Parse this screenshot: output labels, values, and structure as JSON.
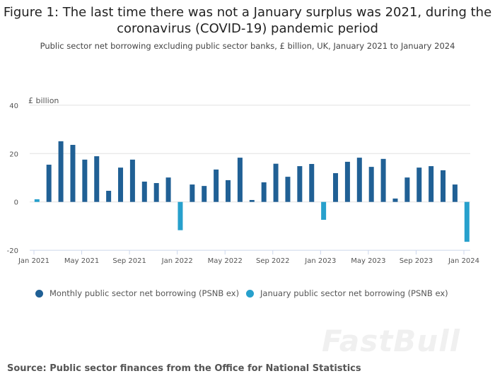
{
  "chart_data": {
    "type": "bar",
    "title": "Figure 1: The last time there was not a January surplus was 2021, during the coronavirus (COVID-19) pandemic period",
    "subtitle": "Public sector net borrowing excluding public sector banks, £ billion, UK, January 2021 to January 2024",
    "ylabel": "£ billion",
    "ylim": [
      -20,
      40
    ],
    "yticks": [
      "40",
      "20",
      "0",
      "-20"
    ],
    "ytick_values": [
      40,
      20,
      0,
      -20
    ],
    "xtick_labels": [
      "Jan 2021",
      "May 2021",
      "Sep 2021",
      "Jan 2022",
      "May 2022",
      "Sep 2022",
      "Jan 2023",
      "May 2023",
      "Sep 2023",
      "Jan 2024"
    ],
    "grid": true,
    "legend_placement": "bottom",
    "categories": [
      "Jan 2021",
      "Feb 2021",
      "Mar 2021",
      "Apr 2021",
      "May 2021",
      "Jun 2021",
      "Jul 2021",
      "Aug 2021",
      "Sep 2021",
      "Oct 2021",
      "Nov 2021",
      "Dec 2021",
      "Jan 2022",
      "Feb 2022",
      "Mar 2022",
      "Apr 2022",
      "May 2022",
      "Jun 2022",
      "Jul 2022",
      "Aug 2022",
      "Sep 2022",
      "Oct 2022",
      "Nov 2022",
      "Dec 2022",
      "Jan 2023",
      "Feb 2023",
      "Mar 2023",
      "Apr 2023",
      "May 2023",
      "Jun 2023",
      "Jul 2023",
      "Aug 2023",
      "Sep 2023",
      "Oct 2023",
      "Nov 2023",
      "Dec 2023",
      "Jan 2024"
    ],
    "values": [
      1.1,
      15.4,
      25.1,
      23.6,
      17.5,
      18.9,
      4.6,
      14.2,
      17.5,
      8.4,
      7.8,
      10.1,
      -11.7,
      7.2,
      6.6,
      13.4,
      9.0,
      18.3,
      0.8,
      8.1,
      15.8,
      10.4,
      14.8,
      15.7,
      -7.4,
      11.9,
      16.6,
      18.3,
      14.5,
      17.8,
      1.4,
      10.1,
      14.2,
      14.8,
      13.1,
      7.2,
      -16.5
    ],
    "series": [
      {
        "name": "Monthly public sector net borrowing (PSNB ex)",
        "color": "#206095"
      },
      {
        "name": "January public sector net borrowing (PSNB ex)",
        "color": "#27a0cc"
      }
    ]
  },
  "source": "Source: Public sector finances from the Office for National Statistics",
  "watermark": "FastBull"
}
